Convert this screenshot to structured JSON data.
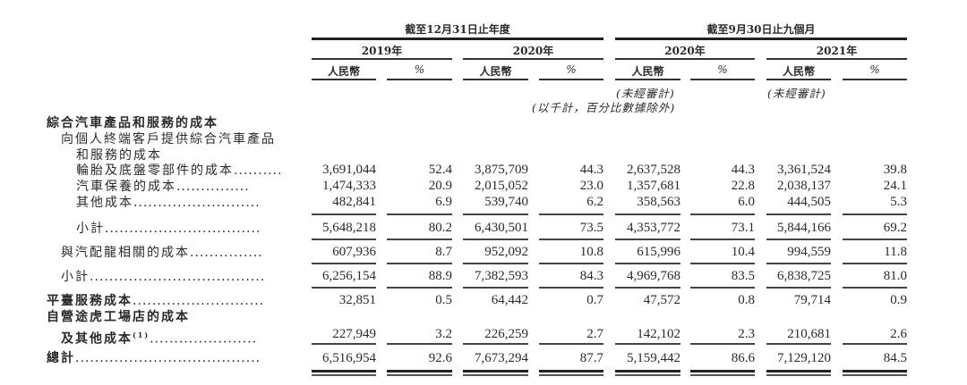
{
  "header": {
    "group1": "截至12月31日止年度",
    "group2": "截至9月30日止九個月",
    "years": [
      "2019年",
      "2020年",
      "2020年",
      "2021年"
    ],
    "currency": "人民幣",
    "percent": "%",
    "unaudited": "(未經審計)",
    "unit_note": "(以千計，百分比數據除外)"
  },
  "rows": [
    {
      "label": "綜合汽車產品和服務的成本",
      "style": "bold",
      "values": []
    },
    {
      "label": "向個人終端客戶提供綜合汽車產品",
      "style": "indent1",
      "values": []
    },
    {
      "label": "和服務的成本",
      "style": "indent2",
      "values": []
    },
    {
      "label": "輪胎及底盤零部件的成本",
      "dots": "..........",
      "values": [
        "3,691,044",
        "52.4",
        "3,875,709",
        "44.3",
        "2,637,528",
        "44.3",
        "3,361,524",
        "39.8"
      ]
    },
    {
      "label": "汽車保養的成本",
      "dots": "...............",
      "values": [
        "1,474,333",
        "20.9",
        "2,015,052",
        "23.0",
        "1,357,681",
        "22.8",
        "2,038,137",
        "24.1"
      ]
    },
    {
      "label": "其他成本",
      "dots": "..........................",
      "values": [
        "482,841",
        "6.9",
        "539,740",
        "6.2",
        "358,563",
        "6.0",
        "444,505",
        "5.3"
      ]
    },
    {
      "label": "小計",
      "dots": "................................",
      "values": [
        "5,648,218",
        "80.2",
        "6,430,501",
        "73.5",
        "4,353,772",
        "73.1",
        "5,844,166",
        "69.2"
      ]
    },
    {
      "label": "與汽配龍相關的成本",
      "dots": "...............",
      "values": [
        "607,936",
        "8.7",
        "952,092",
        "10.8",
        "615,996",
        "10.4",
        "994,559",
        "11.8"
      ]
    },
    {
      "label": "小計",
      "dots": "....................................",
      "values": [
        "6,256,154",
        "88.9",
        "7,382,593",
        "84.3",
        "4,969,768",
        "83.5",
        "6,838,725",
        "81.0"
      ]
    },
    {
      "label": "平臺服務成本",
      "dots": "...........................",
      "values": [
        "32,851",
        "0.5",
        "64,442",
        "0.7",
        "47,572",
        "0.8",
        "79,714",
        "0.9"
      ]
    },
    {
      "label": "自營途虎工場店的成本",
      "values": []
    },
    {
      "label": "及其他成本",
      "footnote": "(1)",
      "dots": "......................",
      "values": [
        "227,949",
        "3.2",
        "226,259",
        "2.7",
        "142,102",
        "2.3",
        "210,681",
        "2.6"
      ]
    },
    {
      "label": "總計",
      "dots": "......................................",
      "values": [
        "6,516,954",
        "92.6",
        "7,673,294",
        "87.7",
        "5,159,442",
        "86.6",
        "7,129,120",
        "84.5"
      ]
    }
  ]
}
